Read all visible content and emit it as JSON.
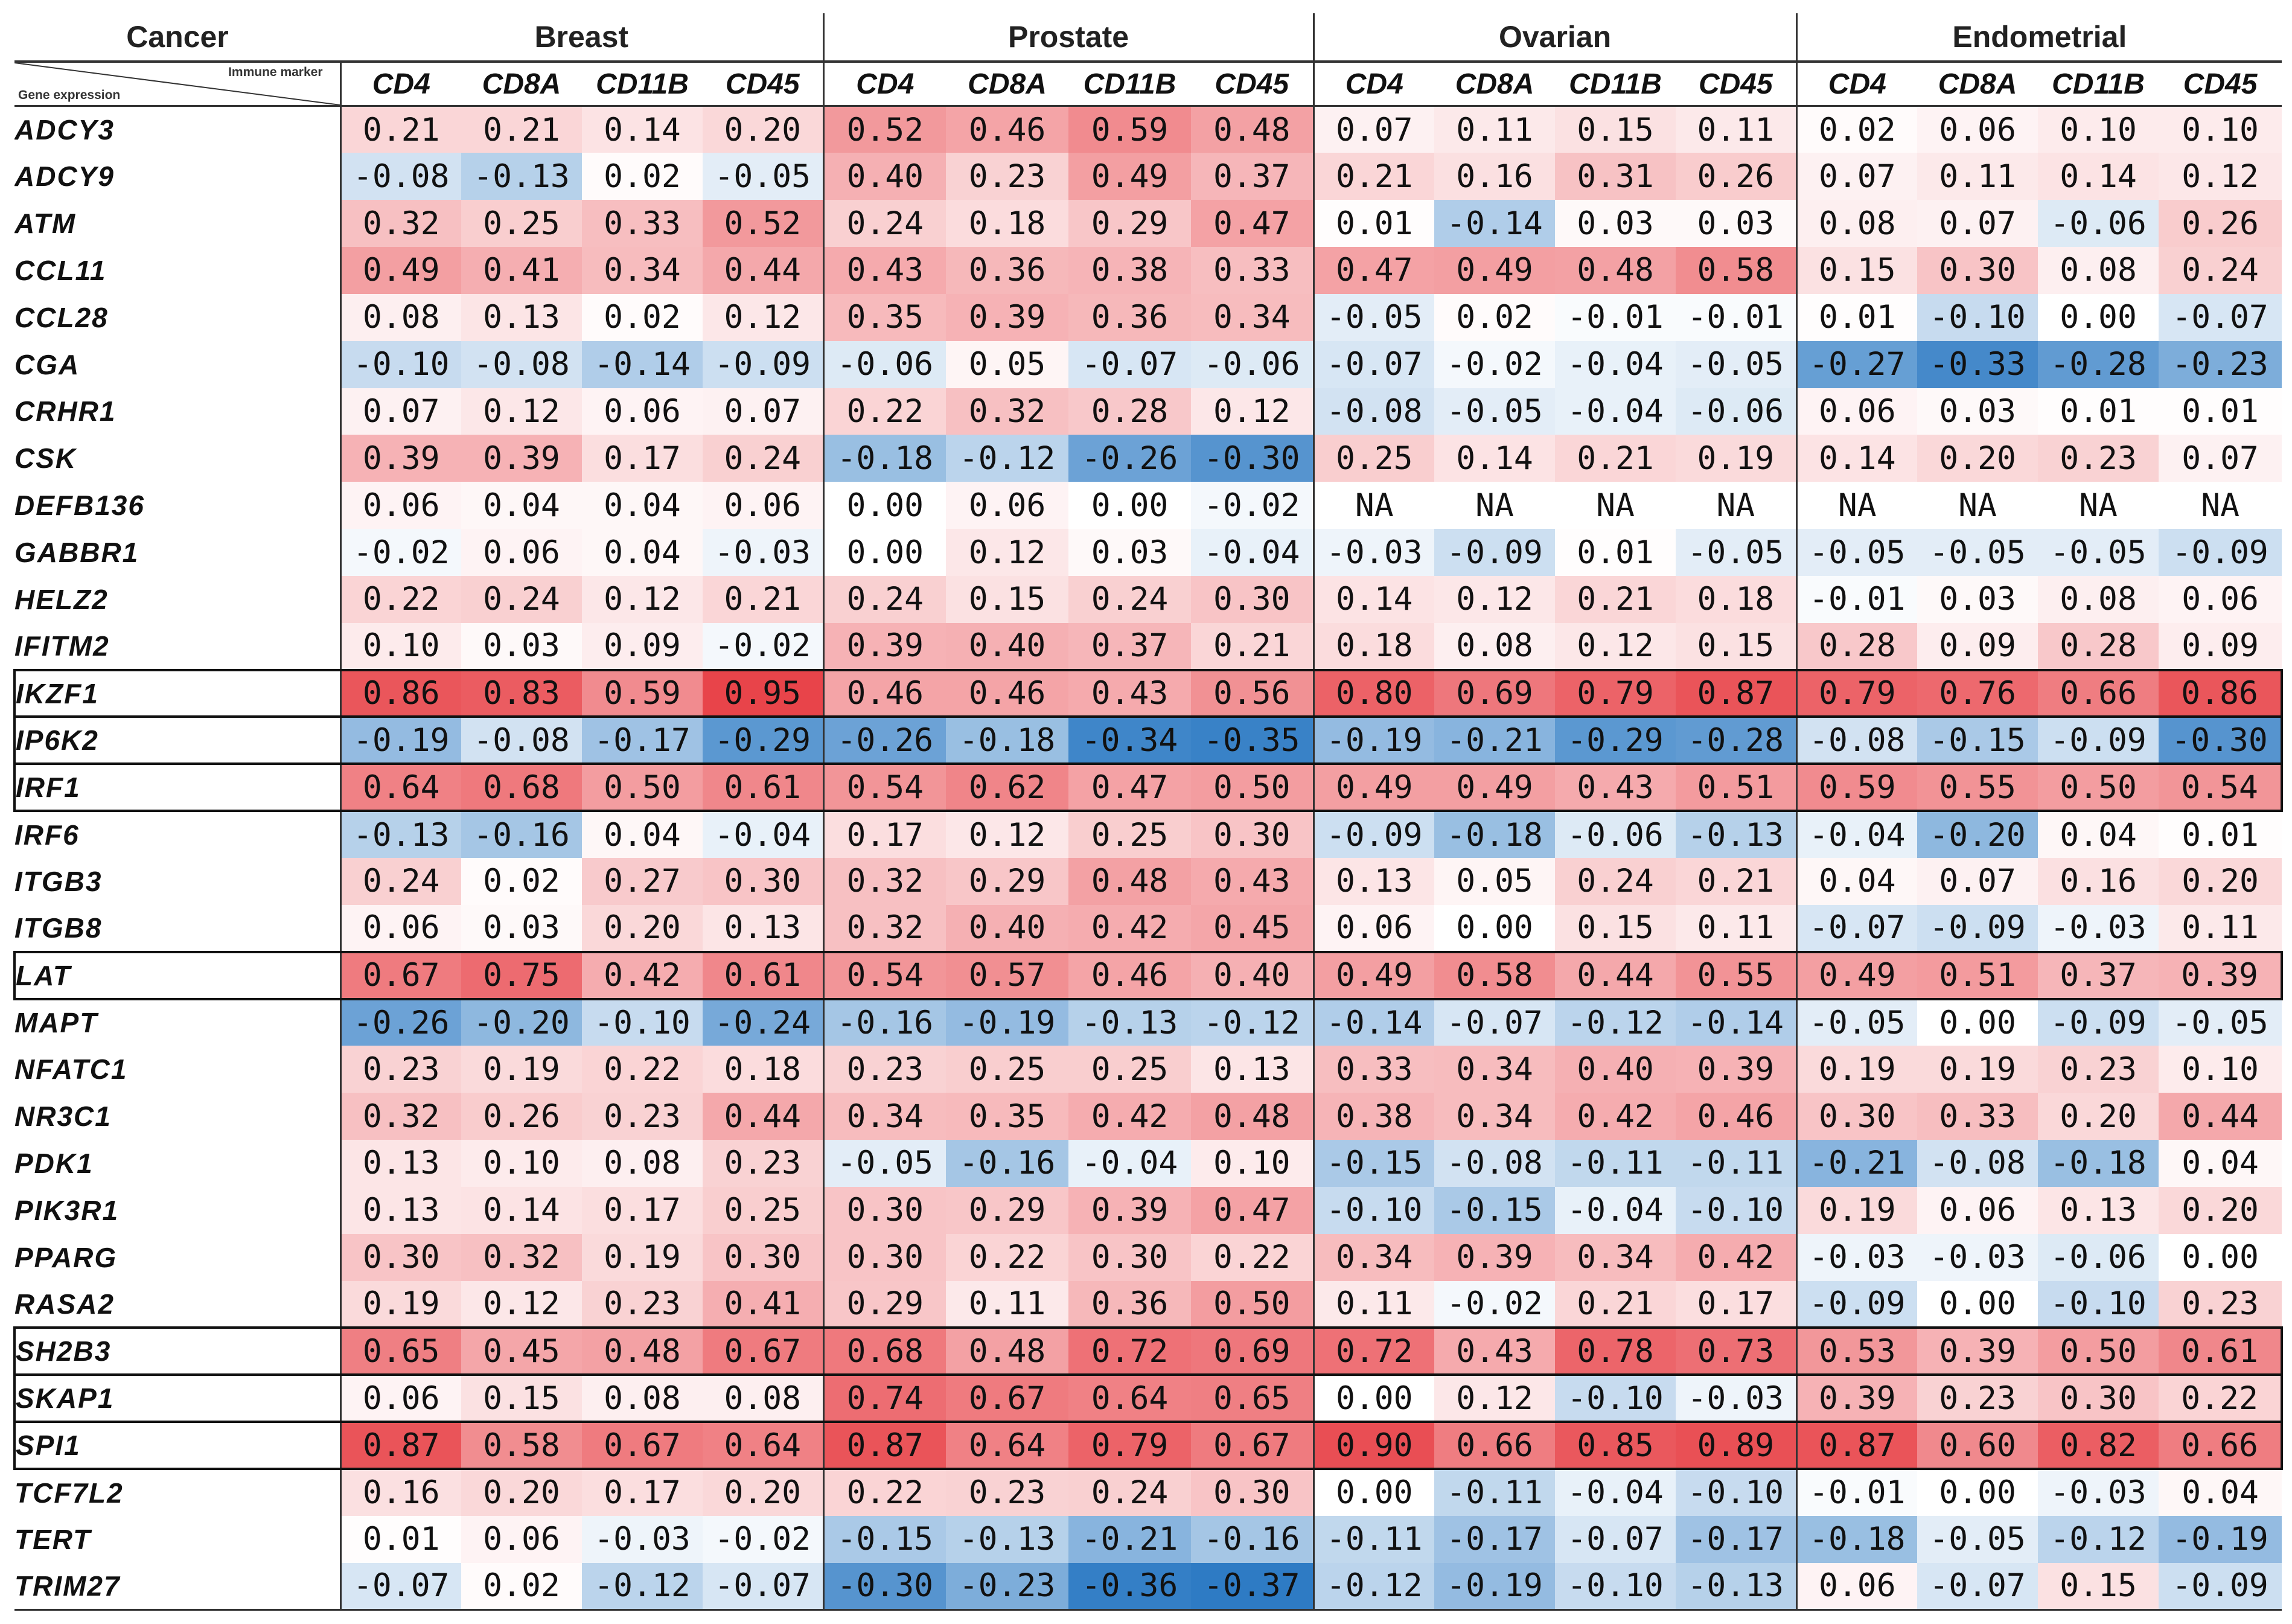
{
  "header": {
    "cancer_label": "Cancer",
    "immune_marker_label": "Immune marker",
    "gene_expression_label": "Gene expression"
  },
  "groups": [
    "Breast",
    "Prostate",
    "Ovarian",
    "Endometrial"
  ],
  "markers": [
    "CD4",
    "CD8A",
    "CD11B",
    "CD45"
  ],
  "highlighted_genes": [
    "IKZF1",
    "IP6K2",
    "IRF1",
    "LAT",
    "SH2B3",
    "SKAP1",
    "SPI1"
  ],
  "colors": {
    "positive": "#e8444a",
    "negative": "#2e7bc4",
    "neutral": "#ffffff",
    "border": "#333333"
  },
  "rows": [
    {
      "gene": "ADCY3",
      "values": [
        "0.21",
        "0.21",
        "0.14",
        "0.20",
        "0.52",
        "0.46",
        "0.59",
        "0.48",
        "0.07",
        "0.11",
        "0.15",
        "0.11",
        "0.02",
        "0.06",
        "0.10",
        "0.10"
      ]
    },
    {
      "gene": "ADCY9",
      "values": [
        "-0.08",
        "-0.13",
        "0.02",
        "-0.05",
        "0.40",
        "0.23",
        "0.49",
        "0.37",
        "0.21",
        "0.16",
        "0.31",
        "0.26",
        "0.07",
        "0.11",
        "0.14",
        "0.12"
      ]
    },
    {
      "gene": "ATM",
      "values": [
        "0.32",
        "0.25",
        "0.33",
        "0.52",
        "0.24",
        "0.18",
        "0.29",
        "0.47",
        "0.01",
        "-0.14",
        "0.03",
        "0.03",
        "0.08",
        "0.07",
        "-0.06",
        "0.26"
      ]
    },
    {
      "gene": "CCL11",
      "values": [
        "0.49",
        "0.41",
        "0.34",
        "0.44",
        "0.43",
        "0.36",
        "0.38",
        "0.33",
        "0.47",
        "0.49",
        "0.48",
        "0.58",
        "0.15",
        "0.30",
        "0.08",
        "0.24"
      ]
    },
    {
      "gene": "CCL28",
      "values": [
        "0.08",
        "0.13",
        "0.02",
        "0.12",
        "0.35",
        "0.39",
        "0.36",
        "0.34",
        "-0.05",
        "0.02",
        "-0.01",
        "-0.01",
        "0.01",
        "-0.10",
        "0.00",
        "-0.07"
      ]
    },
    {
      "gene": "CGA",
      "values": [
        "-0.10",
        "-0.08",
        "-0.14",
        "-0.09",
        "-0.06",
        "0.05",
        "-0.07",
        "-0.06",
        "-0.07",
        "-0.02",
        "-0.04",
        "-0.05",
        "-0.27",
        "-0.33",
        "-0.28",
        "-0.23"
      ]
    },
    {
      "gene": "CRHR1",
      "values": [
        "0.07",
        "0.12",
        "0.06",
        "0.07",
        "0.22",
        "0.32",
        "0.28",
        "0.12",
        "-0.08",
        "-0.05",
        "-0.04",
        "-0.06",
        "0.06",
        "0.03",
        "0.01",
        "0.01"
      ]
    },
    {
      "gene": "CSK",
      "values": [
        "0.39",
        "0.39",
        "0.17",
        "0.24",
        "-0.18",
        "-0.12",
        "-0.26",
        "-0.30",
        "0.25",
        "0.14",
        "0.21",
        "0.19",
        "0.14",
        "0.20",
        "0.23",
        "0.07"
      ]
    },
    {
      "gene": "DEFB136",
      "values": [
        "0.06",
        "0.04",
        "0.04",
        "0.06",
        "0.00",
        "0.06",
        "0.00",
        "-0.02",
        "NA",
        "NA",
        "NA",
        "NA",
        "NA",
        "NA",
        "NA",
        "NA"
      ]
    },
    {
      "gene": "GABBR1",
      "values": [
        "-0.02",
        "0.06",
        "0.04",
        "-0.03",
        "0.00",
        "0.12",
        "0.03",
        "-0.04",
        "-0.03",
        "-0.09",
        "0.01",
        "-0.05",
        "-0.05",
        "-0.05",
        "-0.05",
        "-0.09"
      ]
    },
    {
      "gene": "HELZ2",
      "values": [
        "0.22",
        "0.24",
        "0.12",
        "0.21",
        "0.24",
        "0.15",
        "0.24",
        "0.30",
        "0.14",
        "0.12",
        "0.21",
        "0.18",
        "-0.01",
        "0.03",
        "0.08",
        "0.06"
      ]
    },
    {
      "gene": "IFITM2",
      "values": [
        "0.10",
        "0.03",
        "0.09",
        "-0.02",
        "0.39",
        "0.40",
        "0.37",
        "0.21",
        "0.18",
        "0.08",
        "0.12",
        "0.15",
        "0.28",
        "0.09",
        "0.28",
        "0.09"
      ]
    },
    {
      "gene": "IKZF1",
      "values": [
        "0.86",
        "0.83",
        "0.59",
        "0.95",
        "0.46",
        "0.46",
        "0.43",
        "0.56",
        "0.80",
        "0.69",
        "0.79",
        "0.87",
        "0.79",
        "0.76",
        "0.66",
        "0.86"
      ]
    },
    {
      "gene": "IP6K2",
      "values": [
        "-0.19",
        "-0.08",
        "-0.17",
        "-0.29",
        "-0.26",
        "-0.18",
        "-0.34",
        "-0.35",
        "-0.19",
        "-0.21",
        "-0.29",
        "-0.28",
        "-0.08",
        "-0.15",
        "-0.09",
        "-0.30"
      ]
    },
    {
      "gene": "IRF1",
      "values": [
        "0.64",
        "0.68",
        "0.50",
        "0.61",
        "0.54",
        "0.62",
        "0.47",
        "0.50",
        "0.49",
        "0.49",
        "0.43",
        "0.51",
        "0.59",
        "0.55",
        "0.50",
        "0.54"
      ]
    },
    {
      "gene": "IRF6",
      "values": [
        "-0.13",
        "-0.16",
        "0.04",
        "-0.04",
        "0.17",
        "0.12",
        "0.25",
        "0.30",
        "-0.09",
        "-0.18",
        "-0.06",
        "-0.13",
        "-0.04",
        "-0.20",
        "0.04",
        "0.01"
      ]
    },
    {
      "gene": "ITGB3",
      "values": [
        "0.24",
        "0.02",
        "0.27",
        "0.30",
        "0.32",
        "0.29",
        "0.48",
        "0.43",
        "0.13",
        "0.05",
        "0.24",
        "0.21",
        "0.04",
        "0.07",
        "0.16",
        "0.20"
      ]
    },
    {
      "gene": "ITGB8",
      "values": [
        "0.06",
        "0.03",
        "0.20",
        "0.13",
        "0.32",
        "0.40",
        "0.42",
        "0.45",
        "0.06",
        "0.00",
        "0.15",
        "0.11",
        "-0.07",
        "-0.09",
        "-0.03",
        "0.11"
      ]
    },
    {
      "gene": "LAT",
      "values": [
        "0.67",
        "0.75",
        "0.42",
        "0.61",
        "0.54",
        "0.57",
        "0.46",
        "0.40",
        "0.49",
        "0.58",
        "0.44",
        "0.55",
        "0.49",
        "0.51",
        "0.37",
        "0.39"
      ]
    },
    {
      "gene": "MAPT",
      "values": [
        "-0.26",
        "-0.20",
        "-0.10",
        "-0.24",
        "-0.16",
        "-0.19",
        "-0.13",
        "-0.12",
        "-0.14",
        "-0.07",
        "-0.12",
        "-0.14",
        "-0.05",
        "0.00",
        "-0.09",
        "-0.05"
      ]
    },
    {
      "gene": "NFATC1",
      "values": [
        "0.23",
        "0.19",
        "0.22",
        "0.18",
        "0.23",
        "0.25",
        "0.25",
        "0.13",
        "0.33",
        "0.34",
        "0.40",
        "0.39",
        "0.19",
        "0.19",
        "0.23",
        "0.10"
      ]
    },
    {
      "gene": "NR3C1",
      "values": [
        "0.32",
        "0.26",
        "0.23",
        "0.44",
        "0.34",
        "0.35",
        "0.42",
        "0.48",
        "0.38",
        "0.34",
        "0.42",
        "0.46",
        "0.30",
        "0.33",
        "0.20",
        "0.44"
      ]
    },
    {
      "gene": "PDK1",
      "values": [
        "0.13",
        "0.10",
        "0.08",
        "0.23",
        "-0.05",
        "-0.16",
        "-0.04",
        "0.10",
        "-0.15",
        "-0.08",
        "-0.11",
        "-0.11",
        "-0.21",
        "-0.08",
        "-0.18",
        "0.04"
      ]
    },
    {
      "gene": "PIK3R1",
      "values": [
        "0.13",
        "0.14",
        "0.17",
        "0.25",
        "0.30",
        "0.29",
        "0.39",
        "0.47",
        "-0.10",
        "-0.15",
        "-0.04",
        "-0.10",
        "0.19",
        "0.06",
        "0.13",
        "0.20"
      ]
    },
    {
      "gene": "PPARG",
      "values": [
        "0.30",
        "0.32",
        "0.19",
        "0.30",
        "0.30",
        "0.22",
        "0.30",
        "0.22",
        "0.34",
        "0.39",
        "0.34",
        "0.42",
        "-0.03",
        "-0.03",
        "-0.06",
        "0.00"
      ]
    },
    {
      "gene": "RASA2",
      "values": [
        "0.19",
        "0.12",
        "0.23",
        "0.41",
        "0.29",
        "0.11",
        "0.36",
        "0.50",
        "0.11",
        "-0.02",
        "0.21",
        "0.17",
        "-0.09",
        "0.00",
        "-0.10",
        "0.23"
      ]
    },
    {
      "gene": "SH2B3",
      "values": [
        "0.65",
        "0.45",
        "0.48",
        "0.67",
        "0.68",
        "0.48",
        "0.72",
        "0.69",
        "0.72",
        "0.43",
        "0.78",
        "0.73",
        "0.53",
        "0.39",
        "0.50",
        "0.61"
      ]
    },
    {
      "gene": "SKAP1",
      "values": [
        "0.06",
        "0.15",
        "0.08",
        "0.08",
        "0.74",
        "0.67",
        "0.64",
        "0.65",
        "0.00",
        "0.12",
        "-0.10",
        "-0.03",
        "0.39",
        "0.23",
        "0.30",
        "0.22"
      ]
    },
    {
      "gene": "SPI1",
      "values": [
        "0.87",
        "0.58",
        "0.67",
        "0.64",
        "0.87",
        "0.64",
        "0.79",
        "0.67",
        "0.90",
        "0.66",
        "0.85",
        "0.89",
        "0.87",
        "0.60",
        "0.82",
        "0.66"
      ]
    },
    {
      "gene": "TCF7L2",
      "values": [
        "0.16",
        "0.20",
        "0.17",
        "0.20",
        "0.22",
        "0.23",
        "0.24",
        "0.30",
        "0.00",
        "-0.11",
        "-0.04",
        "-0.10",
        "-0.01",
        "0.00",
        "-0.03",
        "0.04"
      ]
    },
    {
      "gene": "TERT",
      "values": [
        "0.01",
        "0.06",
        "-0.03",
        "-0.02",
        "-0.15",
        "-0.13",
        "-0.21",
        "-0.16",
        "-0.11",
        "-0.17",
        "-0.07",
        "-0.17",
        "-0.18",
        "-0.05",
        "-0.12",
        "-0.19"
      ]
    },
    {
      "gene": "TRIM27",
      "values": [
        "-0.07",
        "0.02",
        "-0.12",
        "-0.07",
        "-0.30",
        "-0.23",
        "-0.36",
        "-0.37",
        "-0.12",
        "-0.19",
        "-0.10",
        "-0.13",
        "0.06",
        "-0.07",
        "0.15",
        "-0.09"
      ]
    }
  ]
}
